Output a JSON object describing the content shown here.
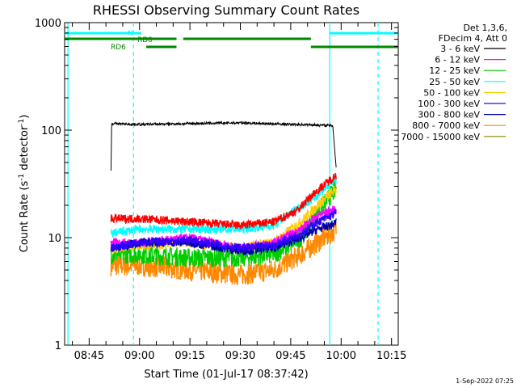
{
  "chart_data": {
    "type": "line",
    "title": "RHESSI Observing Summary Count Rates",
    "xlabel": "Start Time (01-Jul-17 08:37:42)",
    "ylabel_main": "Count Rate (s",
    "ylabel_exp1": "-1",
    "ylabel_mid": " detector",
    "ylabel_exp2": "-1",
    "ylabel_end": ")",
    "yscale": "log",
    "ylim": [
      1,
      1000
    ],
    "xlim_minutes": [
      37.7,
      137.0
    ],
    "y_ticks": [
      {
        "v": 1,
        "label": "1"
      },
      {
        "v": 10,
        "label": "10"
      },
      {
        "v": 100,
        "label": "100"
      },
      {
        "v": 1000,
        "label": "1000"
      }
    ],
    "x_ticks": [
      {
        "t": 45,
        "label": "08:45"
      },
      {
        "t": 60,
        "label": "09:00"
      },
      {
        "t": 75,
        "label": "09:15"
      },
      {
        "t": 90,
        "label": "09:30"
      },
      {
        "t": 105,
        "label": "09:45"
      },
      {
        "t": 120,
        "label": "10:00"
      },
      {
        "t": 135,
        "label": "10:15"
      }
    ],
    "legend_header": [
      "Det 1,3,6,",
      "FDecim 4, Att 0"
    ],
    "series": [
      {
        "name": "3 - 6 keV",
        "color": "#000000",
        "points": [
          [
            51.5,
            42
          ],
          [
            51.7,
            115
          ],
          [
            60,
            113
          ],
          [
            75,
            115
          ],
          [
            90,
            117
          ],
          [
            105,
            113
          ],
          [
            112,
            112
          ],
          [
            117.3,
            110
          ],
          [
            117.5,
            112
          ],
          [
            118.5,
            45
          ]
        ]
      },
      {
        "name": "6 - 12 keV",
        "color": "#ff00ff",
        "points": [
          [
            51.5,
            9
          ],
          [
            60,
            9
          ],
          [
            75,
            10
          ],
          [
            90,
            8
          ],
          [
            100,
            9
          ],
          [
            108,
            12
          ],
          [
            113,
            16
          ],
          [
            117,
            18
          ],
          [
            118.5,
            18
          ]
        ]
      },
      {
        "name": "12 - 25 keV",
        "color": "#00cc00",
        "points": [
          [
            51.5,
            7
          ],
          [
            60,
            7
          ],
          [
            75,
            6.5
          ],
          [
            90,
            6.5
          ],
          [
            100,
            7
          ],
          [
            108,
            10
          ],
          [
            113,
            17
          ],
          [
            117,
            25
          ],
          [
            118.5,
            28
          ]
        ]
      },
      {
        "name": "25 - 50 keV",
        "color": "#00ffff",
        "points": [
          [
            51.5,
            11
          ],
          [
            60,
            12
          ],
          [
            75,
            12
          ],
          [
            90,
            12
          ],
          [
            100,
            13
          ],
          [
            106,
            18
          ],
          [
            111,
            22
          ],
          [
            116,
            30
          ],
          [
            118.5,
            35
          ]
        ]
      },
      {
        "name": "50 - 100 keV",
        "color": "#ffcc00",
        "points": [
          [
            51.5,
            8
          ],
          [
            60,
            8.5
          ],
          [
            75,
            9
          ],
          [
            90,
            8
          ],
          [
            100,
            9
          ],
          [
            108,
            14
          ],
          [
            113,
            20
          ],
          [
            117,
            26
          ],
          [
            118.5,
            28
          ]
        ]
      },
      {
        "name": "100 - 300 keV",
        "color": "#3300ff",
        "points": [
          [
            51.5,
            8
          ],
          [
            60,
            9
          ],
          [
            75,
            9.5
          ],
          [
            90,
            8
          ],
          [
            100,
            8.5
          ],
          [
            108,
            11
          ],
          [
            113,
            14
          ],
          [
            117,
            16
          ],
          [
            118.5,
            17
          ]
        ]
      },
      {
        "name": "300 - 800 keV",
        "color": "#0000aa",
        "points": [
          [
            51.5,
            8
          ],
          [
            60,
            9
          ],
          [
            75,
            9
          ],
          [
            90,
            7.5
          ],
          [
            100,
            8
          ],
          [
            108,
            10
          ],
          [
            113,
            12
          ],
          [
            117,
            13
          ],
          [
            118.5,
            14
          ]
        ]
      },
      {
        "name": "800 - 7000 keV",
        "color": "#ff8800",
        "points": [
          [
            51.5,
            5.5
          ],
          [
            60,
            5.5
          ],
          [
            75,
            5
          ],
          [
            90,
            4.5
          ],
          [
            100,
            5
          ],
          [
            108,
            7
          ],
          [
            113,
            9
          ],
          [
            117,
            11
          ],
          [
            118.5,
            12
          ]
        ]
      },
      {
        "name": "7000 - 15000 keV",
        "color": "#888800",
        "points": []
      },
      {
        "name": "",
        "color": "#ff0000",
        "points": [
          [
            51.5,
            15
          ],
          [
            60,
            15
          ],
          [
            75,
            14
          ],
          [
            90,
            13
          ],
          [
            100,
            14
          ],
          [
            107,
            18
          ],
          [
            112,
            26
          ],
          [
            116,
            33
          ],
          [
            118.5,
            38
          ]
        ]
      }
    ],
    "flag_bars": [
      {
        "label": "N",
        "color": "#00ffff",
        "segments": [
          [
            37.7,
            60.5
          ],
          [
            116.5,
            137
          ]
        ],
        "level": 1
      },
      {
        "label": "RD0",
        "color": "#008800",
        "segments": [
          [
            37.7,
            71
          ],
          [
            73,
            111
          ]
        ],
        "level": 2
      },
      {
        "label": "RD6",
        "color": "#008800",
        "segments": [
          [
            62,
            71
          ],
          [
            111,
            137
          ]
        ],
        "level": 3
      }
    ],
    "vlines_solid": [
      38.7,
      116.6
    ],
    "vlines_dashed": [
      58.2,
      131.0
    ]
  },
  "footer_timestamp": "1-Sep-2022 07:25"
}
